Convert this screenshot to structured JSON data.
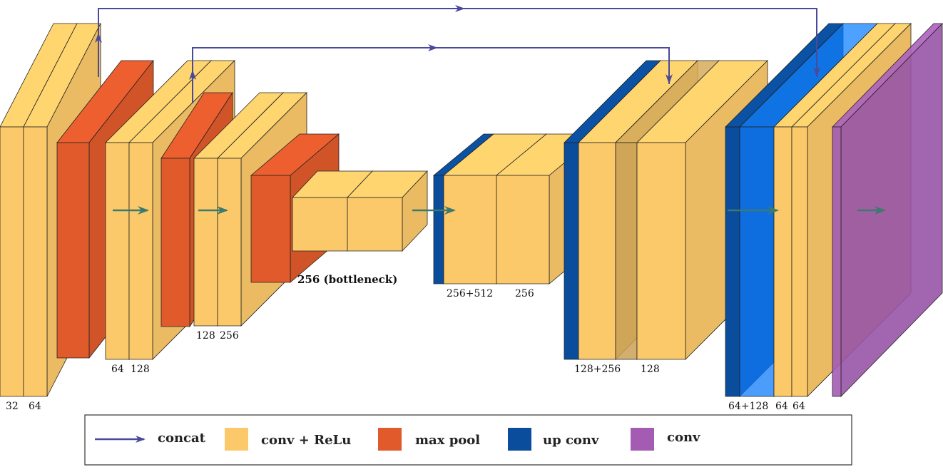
{
  "diagram": {
    "labels": {
      "enc1": [
        "32",
        "64"
      ],
      "enc2": [
        "64",
        "128"
      ],
      "enc3": [
        "128",
        "256"
      ],
      "bottleneck": "256 (bottleneck)",
      "dec3": [
        "256+512",
        "256"
      ],
      "dec2": [
        "128+256",
        "128"
      ],
      "dec1": [
        "64+128",
        "64",
        "64"
      ]
    },
    "legend": {
      "concat": "concat",
      "conv_relu": "conv + ReLu",
      "max_pool": "max pool",
      "up_conv": "up conv",
      "conv": "conv"
    },
    "colors": {
      "conv_relu": "#fcc96a",
      "max_pool": "#e05a2b",
      "up_conv": "#0a4d9c",
      "conv": "#a35bb4",
      "concat_arrow": "#4a4a9a",
      "flow_arrow": "#3b7a6e"
    }
  }
}
